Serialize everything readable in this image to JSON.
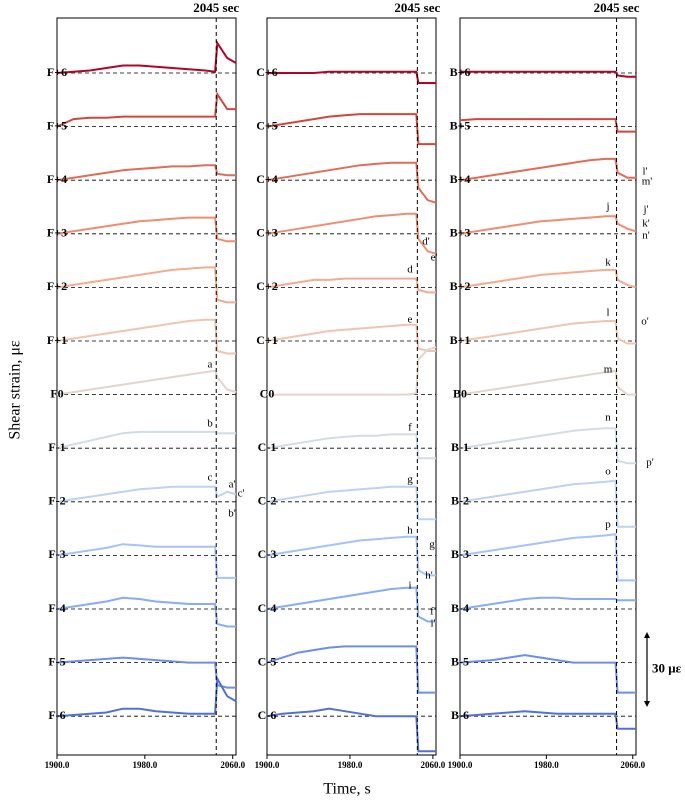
{
  "ylabel": "Shear strain, με",
  "xlabel": "Time, s",
  "scale_bar": {
    "value": 30,
    "label": "30 με"
  },
  "chart_data": [
    {
      "type": "line",
      "title": "2045 sec",
      "event_x": 2045,
      "xlim": [
        1900,
        2063
      ],
      "xticks": [
        {
          "value": 1900,
          "label": "1900.0"
        },
        {
          "value": 1980,
          "label": "1980.0"
        },
        {
          "value": 2060,
          "label": "2060.0"
        }
      ],
      "x": [
        1900,
        1915,
        1930,
        1945,
        1960,
        1975,
        1990,
        2005,
        2020,
        2035,
        2044,
        2046,
        2055,
        2063
      ],
      "annotations": [
        "a",
        "b",
        "c",
        "a'",
        "c'",
        "b'"
      ],
      "series": [
        {
          "name": "F+6",
          "color": "#b40426",
          "values": [
            0,
            0.5,
            1,
            2,
            3,
            3,
            2.5,
            2,
            1.5,
            1,
            0.5,
            12,
            6,
            4
          ]
        },
        {
          "name": "F+5",
          "color": "#d0473d",
          "values": [
            0,
            3,
            3.5,
            3.5,
            4,
            4,
            4,
            4,
            4,
            4,
            4,
            13,
            7,
            7
          ]
        },
        {
          "name": "F+4",
          "color": "#e36c55",
          "values": [
            0,
            1,
            2,
            3,
            4,
            4.5,
            5,
            5.5,
            5.5,
            6,
            6,
            2.5,
            2,
            2
          ]
        },
        {
          "name": "F+3",
          "color": "#f18d6f",
          "values": [
            0,
            1,
            2,
            3,
            4,
            5,
            5.5,
            6,
            6.5,
            6.5,
            6.5,
            -2,
            -3,
            -3
          ]
        },
        {
          "name": "F+2",
          "color": "#f5ab8f",
          "values": [
            0,
            1,
            2,
            3,
            4,
            5,
            6,
            7,
            7.5,
            8,
            8,
            -5,
            -6,
            -6
          ]
        },
        {
          "name": "F+1",
          "color": "#f2c4b0",
          "values": [
            0,
            1,
            2,
            3,
            4,
            5,
            6,
            7,
            8,
            8.5,
            8.5,
            -4,
            -5,
            -5
          ]
        },
        {
          "name": "F0",
          "color": "#e3d4cd",
          "values": [
            0,
            1,
            2,
            3,
            4,
            5,
            6,
            7,
            8,
            9,
            9.5,
            7,
            2,
            1
          ]
        },
        {
          "name": "F-1",
          "color": "#d2dbe8",
          "values": [
            0,
            1.5,
            3,
            4.5,
            6,
            6.5,
            6.5,
            6.5,
            6.5,
            6.5,
            6.5,
            6,
            6,
            6
          ]
        },
        {
          "name": "F-2",
          "color": "#bcd2f7",
          "values": [
            0,
            1,
            2,
            3,
            4,
            5,
            5.5,
            6,
            6,
            6,
            6,
            2,
            4,
            3
          ]
        },
        {
          "name": "F-3",
          "color": "#a3c2fe",
          "values": [
            0,
            1,
            2,
            3,
            4.5,
            4,
            3.5,
            3.5,
            3.5,
            3.5,
            3.5,
            -9,
            -9,
            -9
          ]
        },
        {
          "name": "F-4",
          "color": "#86acfc",
          "values": [
            0,
            1,
            2,
            3,
            4.5,
            4,
            3,
            2.5,
            2,
            2,
            2,
            -6,
            -7,
            -7
          ]
        },
        {
          "name": "F-5",
          "color": "#6b8ff0",
          "values": [
            0,
            0.5,
            1,
            1.5,
            2,
            1.5,
            1,
            0.5,
            0,
            0,
            0,
            -9,
            -10,
            -10
          ]
        },
        {
          "name": "F-6",
          "color": "#5170da",
          "values": [
            0,
            0.5,
            1,
            1.5,
            3,
            3,
            2,
            1.5,
            1,
            1,
            1,
            15,
            8,
            6
          ]
        }
      ]
    },
    {
      "type": "line",
      "title": "2045 sec",
      "event_x": 2045,
      "xlim": [
        1900,
        2063
      ],
      "xticks": [
        {
          "value": 1900,
          "label": "1900.0"
        },
        {
          "value": 1980,
          "label": "1980.0"
        },
        {
          "value": 2060,
          "label": "2060.0"
        }
      ],
      "x": [
        1900,
        1915,
        1930,
        1945,
        1960,
        1975,
        1990,
        2005,
        2020,
        2035,
        2044,
        2046,
        2055,
        2063
      ],
      "annotations": [
        "d",
        "e",
        "f",
        "g",
        "h",
        "i",
        "d'",
        "e'",
        "g'",
        "h'",
        "f'",
        "i'"
      ],
      "series": [
        {
          "name": "C+6",
          "color": "#b40426",
          "values": [
            0,
            0,
            0,
            0,
            0.5,
            0.5,
            0.5,
            0.5,
            0.5,
            0.5,
            0.5,
            -4,
            -4,
            -4
          ]
        },
        {
          "name": "C+5",
          "color": "#d0473d",
          "values": [
            0,
            1,
            2,
            3,
            4,
            4.5,
            5,
            5,
            5,
            5,
            5,
            -7,
            -7,
            -7
          ]
        },
        {
          "name": "C+4",
          "color": "#e36c55",
          "values": [
            0,
            1,
            2,
            3,
            4,
            5,
            6,
            6.5,
            7,
            7,
            7,
            -3,
            -8,
            -9
          ]
        },
        {
          "name": "C+3",
          "color": "#f18d6f",
          "values": [
            0,
            1,
            2,
            3,
            4,
            5,
            6,
            7,
            7.5,
            8,
            8,
            -2,
            -7,
            -8
          ]
        },
        {
          "name": "C+2",
          "color": "#f5ab8f",
          "values": [
            0,
            1,
            2,
            3,
            3,
            3.5,
            3.5,
            3.5,
            3.5,
            3.5,
            3.5,
            -1,
            -2,
            -2
          ]
        },
        {
          "name": "C+1",
          "color": "#f2c4b0",
          "values": [
            0,
            1,
            2,
            3,
            4,
            4.5,
            5,
            5.5,
            6,
            6.5,
            6.5,
            -3,
            -4,
            -4
          ]
        },
        {
          "name": "C0",
          "color": "#e3d4cd",
          "values": [
            0,
            0,
            0,
            0,
            0,
            0,
            0,
            0,
            0,
            0,
            0.5,
            14,
            18,
            19
          ]
        },
        {
          "name": "C-1",
          "color": "#d2dbe8",
          "values": [
            0,
            1,
            2,
            3,
            4,
            4.5,
            5,
            5,
            5.5,
            5.5,
            5.5,
            -4,
            -4,
            -4
          ]
        },
        {
          "name": "C-2",
          "color": "#bcd2f7",
          "values": [
            0,
            1,
            2,
            3,
            4,
            4.5,
            5,
            5.5,
            6,
            6,
            6,
            -7,
            -7,
            -7
          ]
        },
        {
          "name": "C-3",
          "color": "#a3c2fe",
          "values": [
            0,
            1,
            2,
            3,
            4,
            5,
            6,
            6.5,
            7,
            7.5,
            7.5,
            -6,
            -8,
            -8
          ]
        },
        {
          "name": "C-4",
          "color": "#86acfc",
          "values": [
            0,
            1,
            2,
            3,
            4,
            5,
            6,
            7,
            8,
            8.5,
            8.5,
            -3,
            -5,
            -5
          ]
        },
        {
          "name": "C-5",
          "color": "#6b8ff0",
          "values": [
            0,
            2,
            4,
            5,
            6,
            6.5,
            6.5,
            6.5,
            6.5,
            6.5,
            6.5,
            -12,
            -12,
            -12
          ]
        },
        {
          "name": "C-6",
          "color": "#5170da",
          "values": [
            0,
            1,
            1.5,
            2,
            3,
            2,
            1,
            0,
            0,
            0,
            0,
            -14,
            -14,
            -14
          ]
        }
      ]
    },
    {
      "type": "line",
      "title": "2045 sec",
      "event_x": 2045,
      "xlim": [
        1900,
        2063
      ],
      "xticks": [
        {
          "value": 1900,
          "label": "1900.0"
        },
        {
          "value": 1980,
          "label": "1980.0"
        },
        {
          "value": 2060,
          "label": "2060.0"
        }
      ],
      "x": [
        1900,
        1915,
        1930,
        1945,
        1960,
        1975,
        1990,
        2005,
        2020,
        2035,
        2044,
        2046,
        2055,
        2063
      ],
      "annotations": [
        "j",
        "k",
        "l",
        "m",
        "n",
        "o",
        "p",
        "l'",
        "m'",
        "j'",
        "k'",
        "n'",
        "o'",
        "p'"
      ],
      "series": [
        {
          "name": "B+6",
          "color": "#b40426",
          "values": [
            0.5,
            0.5,
            0.5,
            0.5,
            0.5,
            0.5,
            0.5,
            0.5,
            0.5,
            0.5,
            0.5,
            -1,
            -1.5,
            -1.5
          ]
        },
        {
          "name": "B+5",
          "color": "#d0473d",
          "values": [
            2.5,
            3,
            3,
            3,
            3,
            3,
            3,
            3,
            3,
            3,
            3,
            -2,
            -2,
            -2
          ]
        },
        {
          "name": "B+4",
          "color": "#e36c55",
          "values": [
            0,
            1,
            2,
            3,
            4,
            5,
            6,
            7,
            8,
            8.5,
            8.5,
            3,
            1,
            1
          ]
        },
        {
          "name": "B+3",
          "color": "#f18d6f",
          "values": [
            0,
            1,
            2,
            3,
            4,
            5,
            5.5,
            6,
            6.5,
            7,
            7,
            4,
            2,
            1
          ]
        },
        {
          "name": "B+2",
          "color": "#f5ab8f",
          "values": [
            0,
            1,
            2,
            3,
            4,
            5,
            5.5,
            6,
            6.5,
            7,
            7,
            3,
            1,
            0
          ]
        },
        {
          "name": "B+1",
          "color": "#f2c4b0",
          "values": [
            0,
            1,
            2,
            3,
            4,
            5,
            6,
            7,
            7.5,
            8,
            8,
            1,
            -1,
            -1
          ]
        },
        {
          "name": "B0",
          "color": "#e3d4cd",
          "values": [
            0,
            1,
            2,
            3,
            4,
            5,
            6,
            7,
            8,
            9,
            9.5,
            3,
            0,
            0
          ]
        },
        {
          "name": "B-1",
          "color": "#d2dbe8",
          "values": [
            0,
            1,
            2,
            3,
            4,
            5,
            6,
            7,
            7.5,
            8,
            8,
            -5,
            -6,
            -6
          ]
        },
        {
          "name": "B-2",
          "color": "#bcd2f7",
          "values": [
            0,
            1,
            2,
            3,
            4,
            5,
            6,
            7,
            7.5,
            8,
            8.5,
            -10,
            -10,
            -10
          ]
        },
        {
          "name": "B-3",
          "color": "#a3c2fe",
          "values": [
            0,
            1,
            2,
            3,
            4,
            5,
            6,
            7,
            7.5,
            8,
            8.5,
            -10,
            -10,
            -10
          ]
        },
        {
          "name": "B-4",
          "color": "#86acfc",
          "values": [
            0,
            1,
            2,
            3,
            4,
            4.5,
            4.5,
            4,
            4,
            4,
            4,
            3.5,
            3.5,
            3.5
          ]
        },
        {
          "name": "B-5",
          "color": "#6b8ff0",
          "values": [
            0,
            0.5,
            1,
            2,
            3,
            2,
            1,
            0,
            0,
            0,
            0,
            -12,
            -12,
            -12
          ]
        },
        {
          "name": "B-6",
          "color": "#5170da",
          "values": [
            0,
            0.5,
            1,
            1.5,
            2,
            1.5,
            1,
            1,
            1,
            1,
            1,
            -5,
            -5,
            -5
          ]
        }
      ]
    }
  ]
}
